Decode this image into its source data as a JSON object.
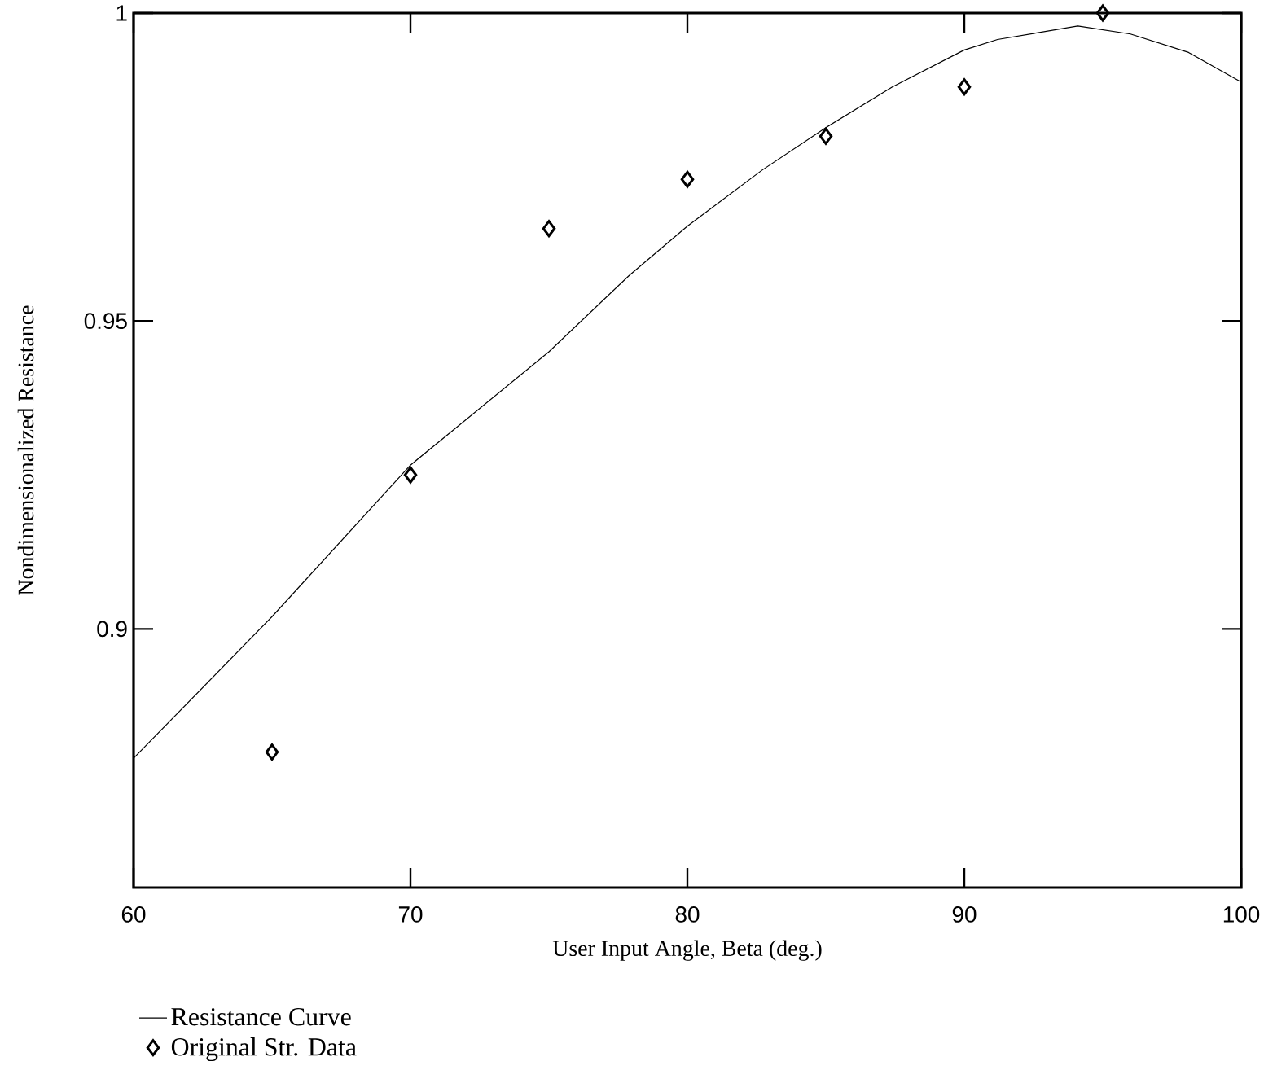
{
  "chart_data": {
    "type": "line",
    "xlabel": "User Input Angle, Beta (deg.)",
    "ylabel": "Nondimensionalized Resistance",
    "xlim": [
      60,
      100
    ],
    "ylim": [
      0.858,
      1
    ],
    "xticks": [
      60,
      70,
      80,
      90,
      100
    ],
    "yticks": [
      0.9,
      0.95,
      1
    ],
    "grid": false,
    "legend": "bottom",
    "series": [
      {
        "name": "Resistance Curve",
        "marker": "none",
        "color": "#000000",
        "x": [
          60,
          65,
          70,
          75,
          77.9,
          80,
          82.7,
          85,
          87.4,
          90,
          91.2,
          94.1,
          96,
          98.1,
          100
        ],
        "values": [
          0.879,
          0.902,
          0.9266,
          0.945,
          0.9574,
          0.9654,
          0.9745,
          0.9814,
          0.988,
          0.994,
          0.9957,
          0.9979,
          0.9966,
          0.9936,
          0.9888
        ]
      },
      {
        "name": "Original Str. Data",
        "type": "scatter",
        "marker": "diamond",
        "color": "#000000",
        "x": [
          65,
          70,
          75,
          80,
          85,
          90,
          95
        ],
        "values": [
          0.88,
          0.925,
          0.965,
          0.973,
          0.98,
          0.988,
          1.0
        ]
      }
    ]
  }
}
